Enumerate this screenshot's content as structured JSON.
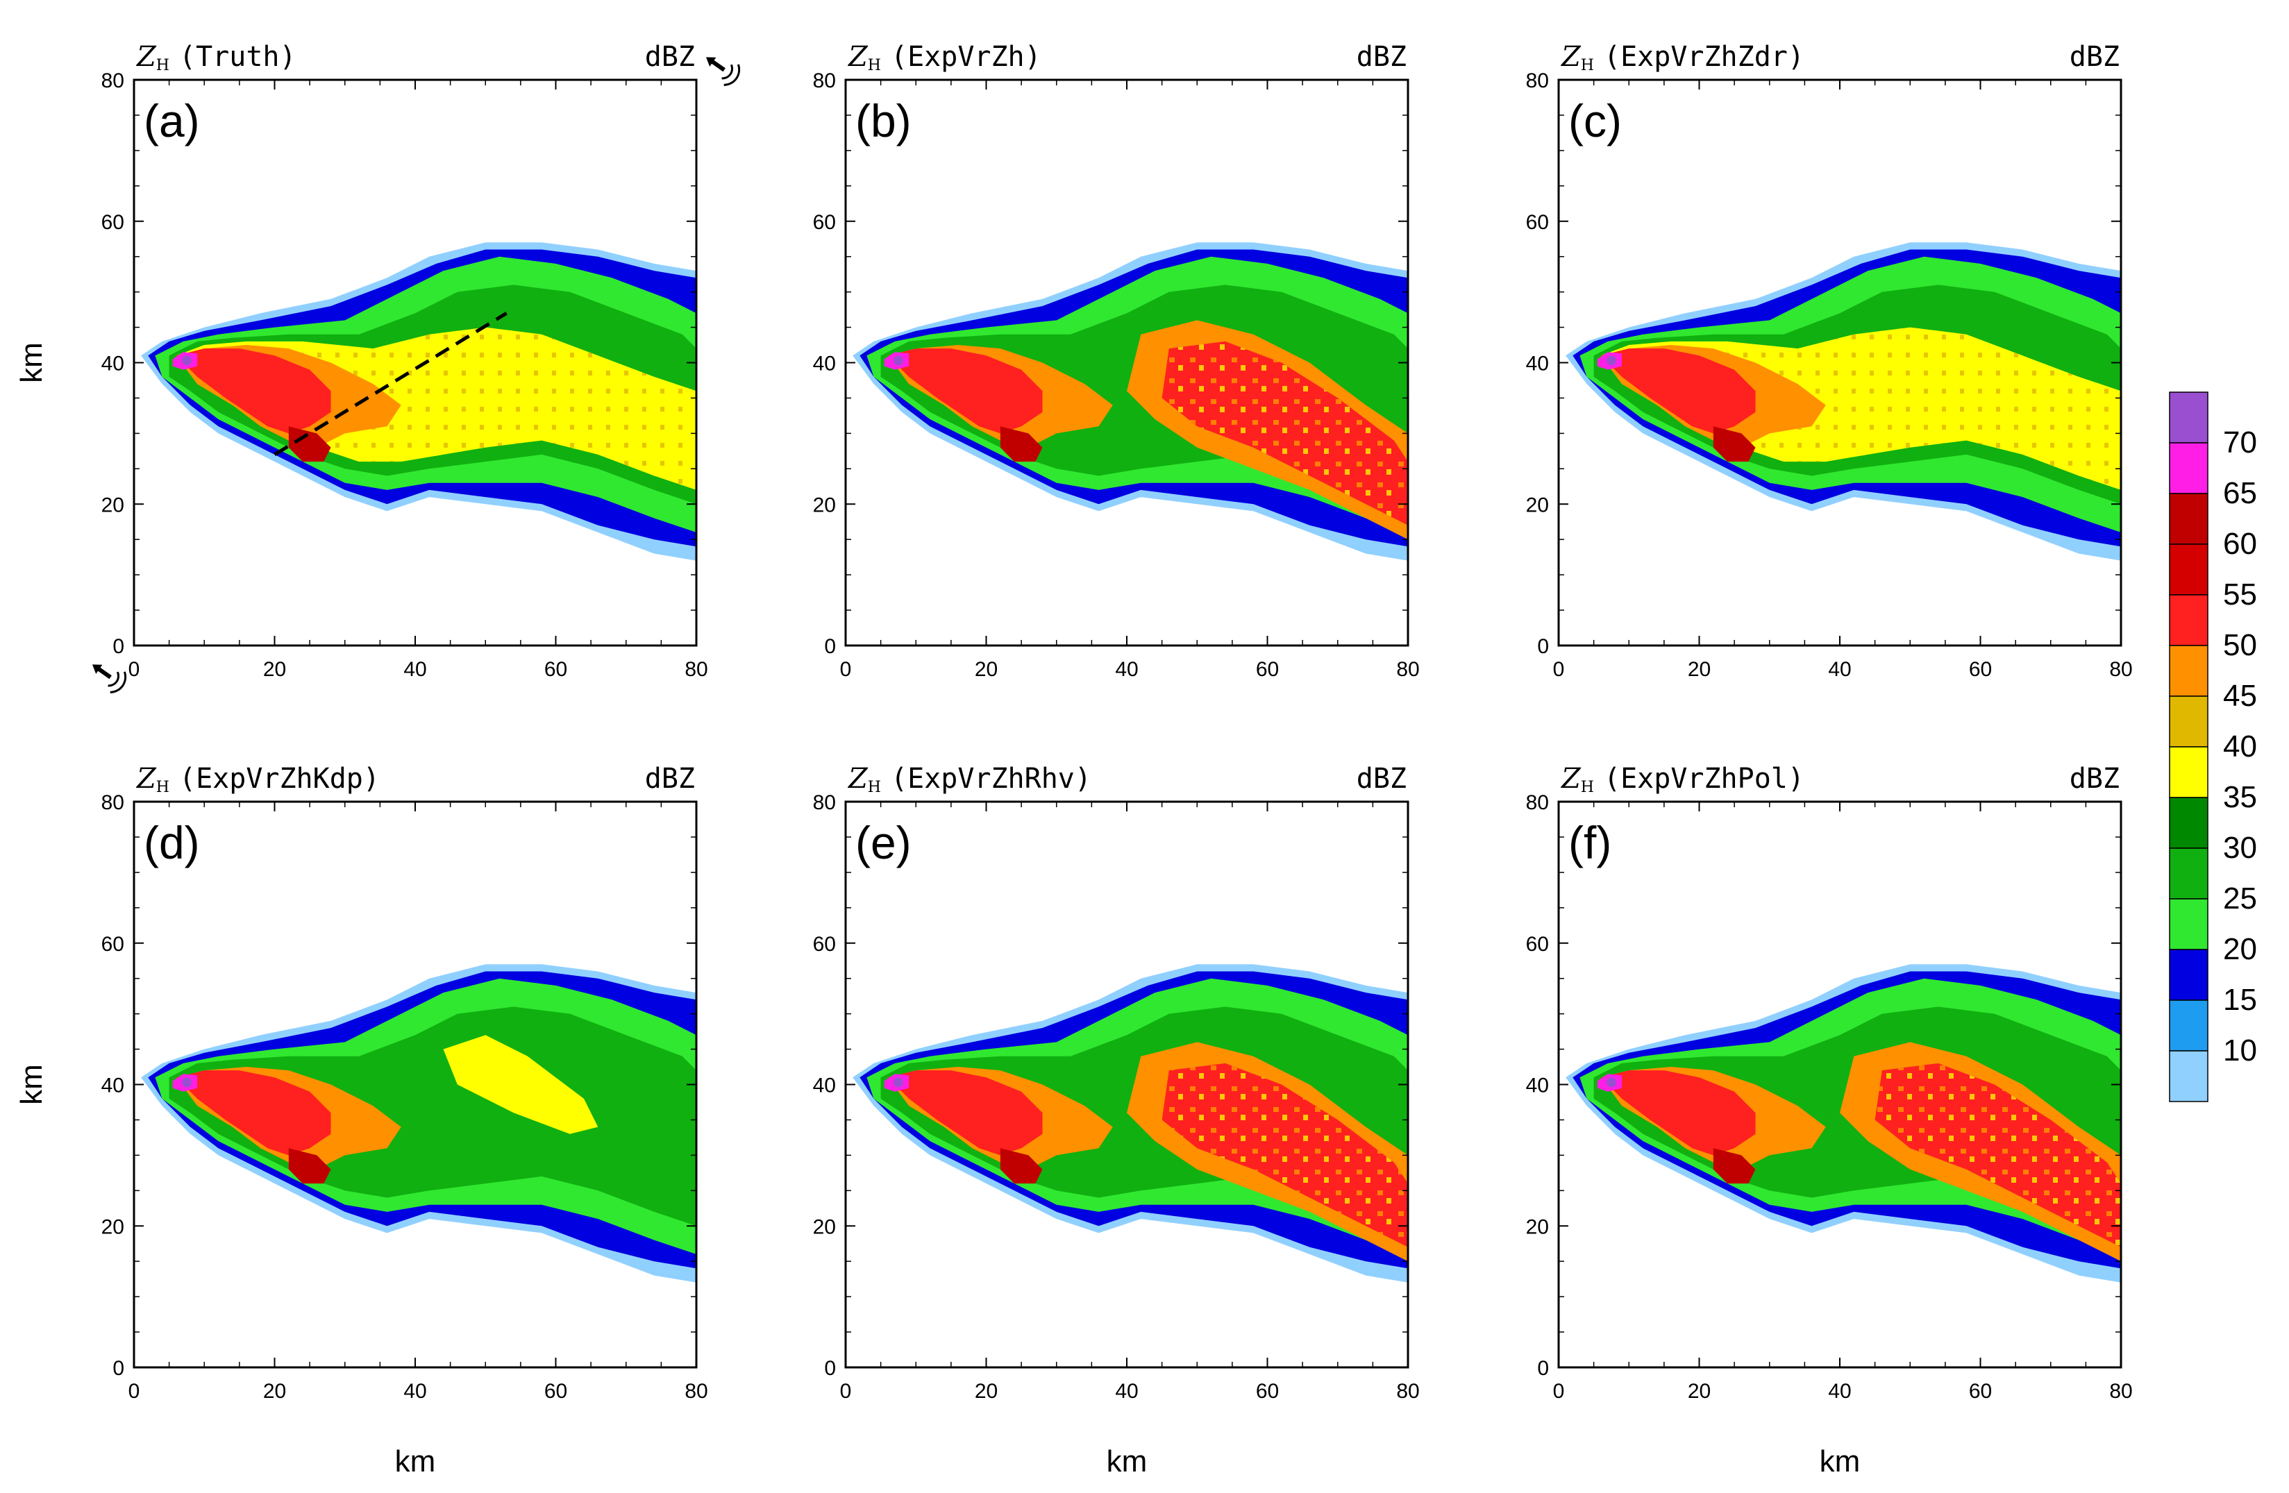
{
  "figure": {
    "ylabel": "km",
    "xlabel": "km",
    "ticks": [
      "0",
      "20",
      "40",
      "60",
      "80"
    ],
    "units": "dBZ",
    "var_main": "Z",
    "var_sub": "H"
  },
  "colorbar": {
    "labels": [
      "70",
      "65",
      "60",
      "55",
      "50",
      "45",
      "40",
      "35",
      "30",
      "25",
      "20",
      "15",
      "10"
    ],
    "colors": [
      "#9a4fd0",
      "#ff1ee6",
      "#c00000",
      "#d40000",
      "#ff2020",
      "#ff9000",
      "#e0b800",
      "#ffff00",
      "#008800",
      "#10b010",
      "#30e830",
      "#0000e0",
      "#1e9cf0",
      "#90d0ff"
    ]
  },
  "chart_data": [
    {
      "type": "heatmap",
      "panel": "(a)",
      "experiment": "(Truth)",
      "xlim": [
        0,
        80
      ],
      "ylim": [
        0,
        80
      ],
      "units": "dBZ",
      "cross_section": {
        "from": [
          20,
          27
        ],
        "to": [
          53,
          47
        ]
      },
      "radar_markers": true
    },
    {
      "type": "heatmap",
      "panel": "(b)",
      "experiment": "(ExpVrZh)",
      "xlim": [
        0,
        80
      ],
      "ylim": [
        0,
        80
      ],
      "units": "dBZ"
    },
    {
      "type": "heatmap",
      "panel": "(c)",
      "experiment": "(ExpVrZhZdr)",
      "xlim": [
        0,
        80
      ],
      "ylim": [
        0,
        80
      ],
      "units": "dBZ"
    },
    {
      "type": "heatmap",
      "panel": "(d)",
      "experiment": "(ExpVrZhKdp)",
      "xlim": [
        0,
        80
      ],
      "ylim": [
        0,
        80
      ],
      "units": "dBZ"
    },
    {
      "type": "heatmap",
      "panel": "(e)",
      "experiment": "(ExpVrZhRhv)",
      "xlim": [
        0,
        80
      ],
      "ylim": [
        0,
        80
      ],
      "units": "dBZ"
    },
    {
      "type": "heatmap",
      "panel": "(f)",
      "experiment": "(ExpVrZhPol)",
      "xlim": [
        0,
        80
      ],
      "ylim": [
        0,
        80
      ],
      "units": "dBZ"
    }
  ]
}
